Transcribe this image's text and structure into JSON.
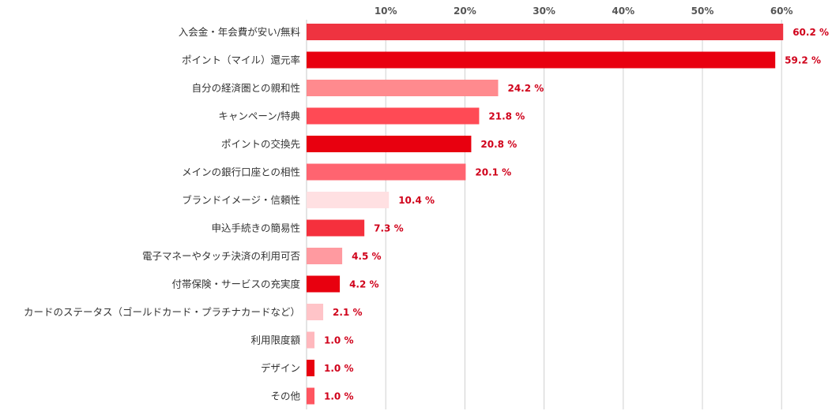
{
  "chart_data": {
    "type": "bar",
    "orientation": "horizontal",
    "title": "",
    "xlabel": "",
    "ylabel": "",
    "xlim": [
      0,
      64
    ],
    "grid": true,
    "ticks": [
      {
        "value": 10,
        "label": "10%"
      },
      {
        "value": 20,
        "label": "20%"
      },
      {
        "value": 30,
        "label": "30%"
      },
      {
        "value": 40,
        "label": "40%"
      },
      {
        "value": 50,
        "label": "50%"
      },
      {
        "value": 60,
        "label": "60%"
      }
    ],
    "value_label_color": "#d0021b",
    "bars": [
      {
        "label": "入会金・年会費が安い/無料",
        "value": 60.2,
        "value_label": "60.2 %",
        "color": "#ef3340"
      },
      {
        "label": "ポイント（マイル）還元率",
        "value": 59.2,
        "value_label": "59.2 %",
        "color": "#e8000f"
      },
      {
        "label": "自分の経済圏との親和性",
        "value": 24.2,
        "value_label": "24.2 %",
        "color": "#ff8a8e"
      },
      {
        "label": "キャンペーン/特典",
        "value": 21.8,
        "value_label": "21.8 %",
        "color": "#ff4a55"
      },
      {
        "label": "ポイントの交換先",
        "value": 20.8,
        "value_label": "20.8 %",
        "color": "#e8000f"
      },
      {
        "label": "メインの銀行口座との相性",
        "value": 20.1,
        "value_label": "20.1 %",
        "color": "#ff6470"
      },
      {
        "label": "ブランドイメージ・信頼性",
        "value": 10.4,
        "value_label": "10.4 %",
        "color": "#ffe0e2"
      },
      {
        "label": "申込手続きの簡易性",
        "value": 7.3,
        "value_label": "7.3 %",
        "color": "#f5303d"
      },
      {
        "label": "電子マネーやタッチ決済の利用可否",
        "value": 4.5,
        "value_label": "4.5 %",
        "color": "#ff9aa0"
      },
      {
        "label": "付帯保険・サービスの充実度",
        "value": 4.2,
        "value_label": "4.2 %",
        "color": "#e8000f"
      },
      {
        "label": "カードのステータス（ゴールドカード・プラチナカードなど）",
        "value": 2.1,
        "value_label": "2.1 %",
        "color": "#ffc4c8"
      },
      {
        "label": "利用限度額",
        "value": 1.0,
        "value_label": "1.0 %",
        "color": "#ffb8bd"
      },
      {
        "label": "デザイン",
        "value": 1.0,
        "value_label": "1.0 %",
        "color": "#e8000f"
      },
      {
        "label": "その他",
        "value": 1.0,
        "value_label": "1.0 %",
        "color": "#ff5560"
      }
    ]
  }
}
